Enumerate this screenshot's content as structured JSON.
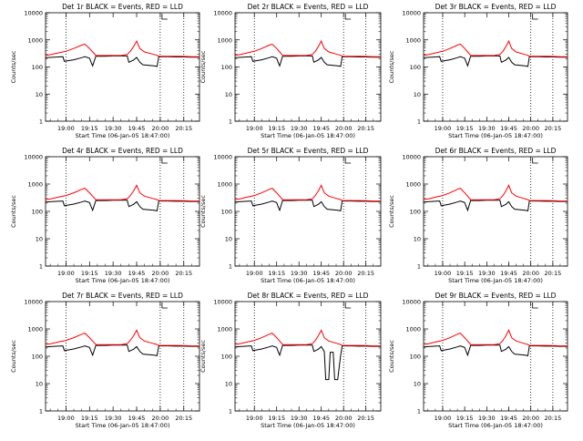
{
  "colors": {
    "background": "#ffffff",
    "axes": "#000000",
    "events_series": "#000000",
    "lld_series": "#ff0000"
  },
  "panels": [
    {
      "title": "Det 1r BLACK = Events, RED = LLD",
      "xlabel": "Start Time (06-Jan-05 18:47:00)",
      "ylabel": "Counts/sec"
    },
    {
      "title": "Det 2r BLACK = Events, RED = LLD",
      "xlabel": "Start Time (06-Jan-05 18:47:00)",
      "ylabel": "Counts/sec"
    },
    {
      "title": "Det 3r BLACK = Events, RED = LLD",
      "xlabel": "Start Time (06-Jan-05 18:47:00)",
      "ylabel": "Counts/sec"
    },
    {
      "title": "Det 4r BLACK = Events, RED = LLD",
      "xlabel": "Start Time (06-Jan-05 18:47:00)",
      "ylabel": "Counts/sec"
    },
    {
      "title": "Det 5r BLACK = Events, RED = LLD",
      "xlabel": "Start Time (06-Jan-05 18:47:00)",
      "ylabel": "Counts/sec"
    },
    {
      "title": "Det 6r BLACK = Events, RED = LLD",
      "xlabel": "Start Time (06-Jan-05 18:47:00)",
      "ylabel": "Counts/sec"
    },
    {
      "title": "Det 7r BLACK = Events, RED = LLD",
      "xlabel": "Start Time (06-Jan-05 18:47:00)",
      "ylabel": "Counts/sec"
    },
    {
      "title": "Det 8r BLACK = Events, RED = LLD",
      "xlabel": "Start Time (06-Jan-05 18:47:00)",
      "ylabel": "Counts/sec"
    },
    {
      "title": "Det 9r BLACK = Events, RED = LLD",
      "xlabel": "Start Time (06-Jan-05 18:47:00)",
      "ylabel": "Counts/sec"
    }
  ],
  "chart_data": {
    "type": "line",
    "layout": "3x3 grid",
    "yscale": "log",
    "ylim": [
      1,
      10000
    ],
    "yticks": [
      1,
      10,
      100,
      1000,
      10000
    ],
    "ytick_labels": [
      "1",
      "10",
      "100",
      "1000",
      "10000"
    ],
    "xlim": [
      "18:47",
      "20:25"
    ],
    "xticks": [
      "19:00",
      "19:15",
      "19:30",
      "19:45",
      "20:00",
      "20:15"
    ],
    "vertical_dotted_lines": [
      "19:00",
      "20:00",
      "20:15"
    ],
    "series": [
      {
        "name": "Events",
        "color": "#000000",
        "x": [
          "18:47",
          "18:50",
          "18:55",
          "18:58",
          "18:59",
          "19:00",
          "19:05",
          "19:10",
          "19:12",
          "19:15",
          "19:16",
          "19:17",
          "19:19",
          "19:21",
          "19:25",
          "19:30",
          "19:35",
          "19:39",
          "19:40",
          "19:43",
          "19:45",
          "19:47",
          "19:49",
          "19:56",
          "19:58",
          "19:59",
          "20:00",
          "20:05",
          "20:10",
          "20:15",
          "20:20",
          "20:25"
        ],
        "values": [
          220,
          225,
          235,
          240,
          160,
          165,
          185,
          220,
          240,
          210,
          150,
          110,
          250,
          250,
          250,
          255,
          255,
          255,
          150,
          180,
          225,
          150,
          120,
          110,
          105,
          235,
          240,
          240,
          235,
          235,
          230,
          230
        ]
      },
      {
        "name": "LLD",
        "color": "#ff0000",
        "x": [
          "18:47",
          "18:50",
          "18:55",
          "19:00",
          "19:05",
          "19:10",
          "19:12",
          "19:15",
          "19:17",
          "19:19",
          "19:21",
          "19:25",
          "19:30",
          "19:35",
          "19:39",
          "19:41",
          "19:43",
          "19:45",
          "19:47",
          "19:50",
          "19:55",
          "19:58",
          "19:59",
          "20:00",
          "20:05",
          "20:10",
          "20:15",
          "20:20",
          "20:25"
        ],
        "values": [
          270,
          285,
          330,
          380,
          480,
          640,
          700,
          480,
          360,
          270,
          265,
          265,
          265,
          265,
          290,
          380,
          560,
          900,
          480,
          360,
          300,
          270,
          250,
          250,
          250,
          250,
          245,
          240,
          240
        ]
      }
    ],
    "panel_overrides": {
      "Det 8r": {
        "Events": {
          "x": [
            "19:45",
            "19:47",
            "19:48",
            "19:50",
            "19:51",
            "19:53",
            "19:54",
            "19:56"
          ],
          "values": [
            225,
            150,
            14,
            14,
            140,
            140,
            14,
            14
          ]
        }
      }
    }
  }
}
